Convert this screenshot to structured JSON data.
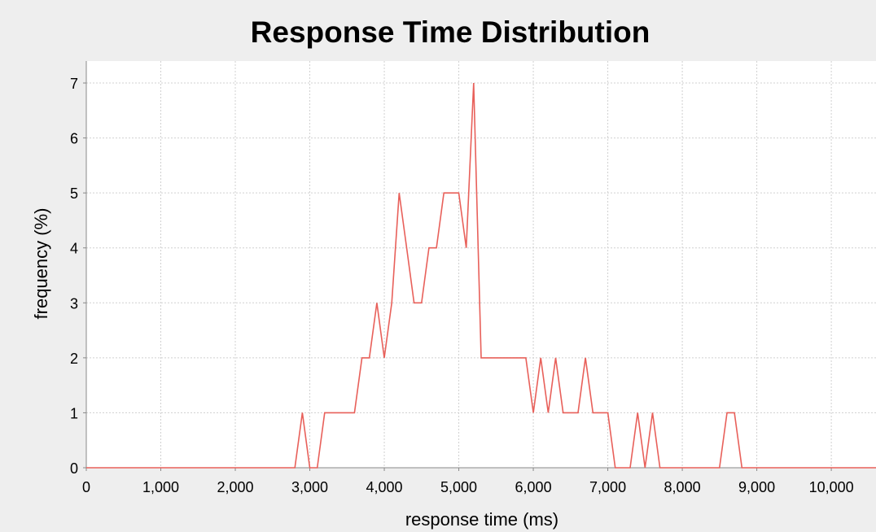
{
  "chart_data": {
    "type": "line",
    "title": "Response Time Distribution",
    "xlabel": "response time (ms)",
    "ylabel": "frequency (%)",
    "xlim": [
      0,
      10600
    ],
    "ylim": [
      0,
      7.4
    ],
    "grid": true,
    "legend": "none",
    "colors": {
      "series": "#e8605a",
      "background": "#eeeeee",
      "plot_bg": "#ffffff",
      "grid": "#d0d0d0",
      "axis": "#888888"
    },
    "x_ticks": [
      0,
      1000,
      2000,
      3000,
      4000,
      5000,
      6000,
      7000,
      8000,
      9000,
      10000
    ],
    "x_tick_labels": [
      "0",
      "1,000",
      "2,000",
      "3,000",
      "4,000",
      "5,000",
      "6,000",
      "7,000",
      "8,000",
      "9,000",
      "10,000"
    ],
    "y_ticks": [
      0,
      1,
      2,
      3,
      4,
      5,
      6,
      7
    ],
    "y_tick_labels": [
      "0",
      "1",
      "2",
      "3",
      "4",
      "5",
      "6",
      "7"
    ],
    "series": [
      {
        "points": [
          [
            0,
            0
          ],
          [
            2800,
            0
          ],
          [
            2900,
            1
          ],
          [
            3000,
            0
          ],
          [
            3100,
            0
          ],
          [
            3200,
            1
          ],
          [
            3600,
            1
          ],
          [
            3700,
            2
          ],
          [
            3800,
            2
          ],
          [
            3900,
            3
          ],
          [
            4000,
            2
          ],
          [
            4100,
            3
          ],
          [
            4200,
            5
          ],
          [
            4300,
            4
          ],
          [
            4400,
            3
          ],
          [
            4500,
            3
          ],
          [
            4600,
            4
          ],
          [
            4700,
            4
          ],
          [
            4800,
            5
          ],
          [
            5000,
            5
          ],
          [
            5100,
            4
          ],
          [
            5200,
            7
          ],
          [
            5300,
            2
          ],
          [
            5900,
            2
          ],
          [
            6000,
            1
          ],
          [
            6100,
            2
          ],
          [
            6200,
            1
          ],
          [
            6300,
            2
          ],
          [
            6400,
            1
          ],
          [
            6600,
            1
          ],
          [
            6700,
            2
          ],
          [
            6800,
            1
          ],
          [
            7000,
            1
          ],
          [
            7100,
            0
          ],
          [
            7300,
            0
          ],
          [
            7400,
            1
          ],
          [
            7500,
            0
          ],
          [
            7600,
            1
          ],
          [
            7700,
            0
          ],
          [
            8500,
            0
          ],
          [
            8600,
            1
          ],
          [
            8700,
            1
          ],
          [
            8800,
            0
          ],
          [
            10600,
            0
          ]
        ]
      }
    ]
  }
}
